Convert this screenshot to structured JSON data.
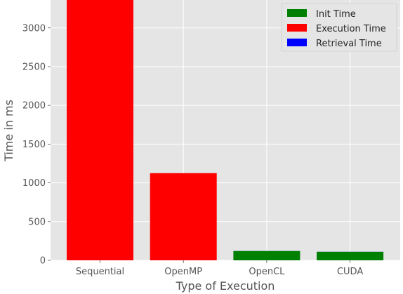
{
  "chart_data": {
    "type": "bar",
    "stacked": true,
    "categories": [
      "Sequential",
      "OpenMP",
      "OpenCL",
      "CUDA"
    ],
    "series": [
      {
        "name": "Init Time",
        "color": "#008000",
        "values": [
          0,
          0,
          120,
          110
        ]
      },
      {
        "name": "Execution Time",
        "color": "#ff0000",
        "values": [
          3420,
          1125,
          0,
          0
        ]
      },
      {
        "name": "Retrieval Time",
        "color": "#0000ff",
        "values": [
          0,
          0,
          1,
          1
        ]
      }
    ],
    "xlabel": "Type of Execution",
    "ylabel": "Time in ms",
    "ylim": [
      0,
      3360
    ],
    "yticks": [
      0,
      500,
      1000,
      1500,
      2000,
      2500,
      3000
    ],
    "grid": true,
    "legend_position": "top-right",
    "style": {
      "plot_background": "#e5e5e5",
      "grid_color": "#ffffff"
    }
  }
}
